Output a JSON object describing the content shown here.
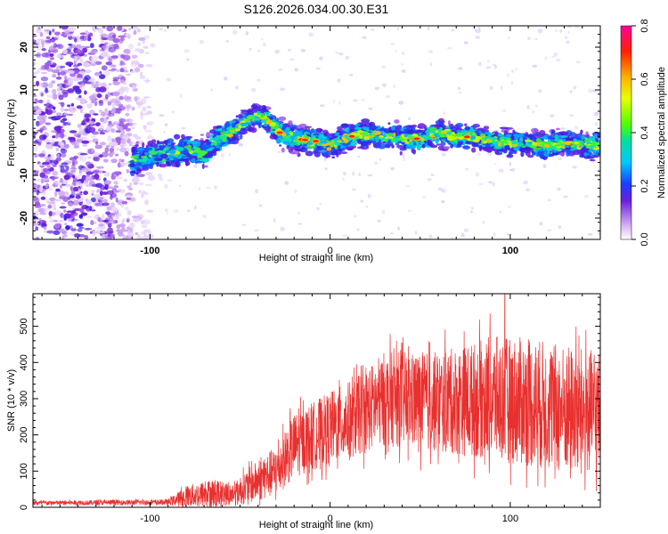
{
  "title": "S126.2026.034.00.30.E31",
  "chart_data": [
    {
      "type": "heatmap",
      "name": "spectrogram",
      "xlabel": "Height of straight line (km)",
      "ylabel": "Frequency (Hz)",
      "xlim": [
        -165,
        150
      ],
      "ylim": [
        -25,
        25
      ],
      "xticks": [
        -100,
        0,
        100
      ],
      "xticks_bold": [
        true,
        false,
        true
      ],
      "yticks": [
        20,
        10,
        0,
        -10,
        -20
      ],
      "ridge": [
        {
          "x": -110,
          "y": -6.5
        },
        {
          "x": -100,
          "y": -5.5
        },
        {
          "x": -88,
          "y": -5
        },
        {
          "x": -78,
          "y": -4
        },
        {
          "x": -70,
          "y": -5
        },
        {
          "x": -64,
          "y": -2
        },
        {
          "x": -55,
          "y": 0
        },
        {
          "x": -48,
          "y": 2
        },
        {
          "x": -42,
          "y": 4
        },
        {
          "x": -35,
          "y": 3
        },
        {
          "x": -28,
          "y": 0
        },
        {
          "x": -18,
          "y": -1.5
        },
        {
          "x": -8,
          "y": -2
        },
        {
          "x": 0,
          "y": -3
        },
        {
          "x": 10,
          "y": -1
        },
        {
          "x": 20,
          "y": -0.5
        },
        {
          "x": 35,
          "y": -1
        },
        {
          "x": 50,
          "y": -1.5
        },
        {
          "x": 60,
          "y": 0
        },
        {
          "x": 70,
          "y": -1
        },
        {
          "x": 80,
          "y": -1
        },
        {
          "x": 90,
          "y": -2
        },
        {
          "x": 100,
          "y": -2.5
        },
        {
          "x": 110,
          "y": -2.5
        },
        {
          "x": 120,
          "y": -3
        },
        {
          "x": 130,
          "y": -2.5
        },
        {
          "x": 140,
          "y": -3
        },
        {
          "x": 150,
          "y": -3
        }
      ],
      "noise_region_x": [
        -165,
        -95
      ],
      "colorbar": {
        "label": "Normalized spectral amplitude",
        "range": [
          0,
          0.8
        ],
        "ticks": [
          "0.0",
          "0.2",
          "0.4",
          "0.6",
          "0.8"
        ]
      }
    },
    {
      "type": "line",
      "name": "snr",
      "xlabel": "Height of straight line (km)",
      "ylabel": "SNR (10 * v/v)",
      "xlim": [
        -165,
        150
      ],
      "ylim": [
        0,
        590
      ],
      "xticks": [
        -100,
        0,
        100
      ],
      "yticks": [
        0,
        100,
        200,
        300,
        400,
        500
      ],
      "color": "#e8302e",
      "envelope": [
        {
          "x": -165,
          "mean": 12,
          "amp": 6
        },
        {
          "x": -90,
          "mean": 14,
          "amp": 8
        },
        {
          "x": -80,
          "mean": 30,
          "amp": 30
        },
        {
          "x": -65,
          "mean": 40,
          "amp": 40
        },
        {
          "x": -55,
          "mean": 35,
          "amp": 30
        },
        {
          "x": -45,
          "mean": 60,
          "amp": 50
        },
        {
          "x": -30,
          "mean": 100,
          "amp": 70
        },
        {
          "x": -20,
          "mean": 170,
          "amp": 90
        },
        {
          "x": 0,
          "mean": 220,
          "amp": 100
        },
        {
          "x": 15,
          "mean": 250,
          "amp": 110
        },
        {
          "x": 30,
          "mean": 300,
          "amp": 130
        },
        {
          "x": 60,
          "mean": 290,
          "amp": 140
        },
        {
          "x": 90,
          "mean": 300,
          "amp": 170
        },
        {
          "x": 110,
          "mean": 290,
          "amp": 180
        },
        {
          "x": 130,
          "mean": 270,
          "amp": 180
        },
        {
          "x": 150,
          "mean": 260,
          "amp": 170
        }
      ],
      "peak": {
        "x": 97,
        "y": 590
      }
    }
  ]
}
